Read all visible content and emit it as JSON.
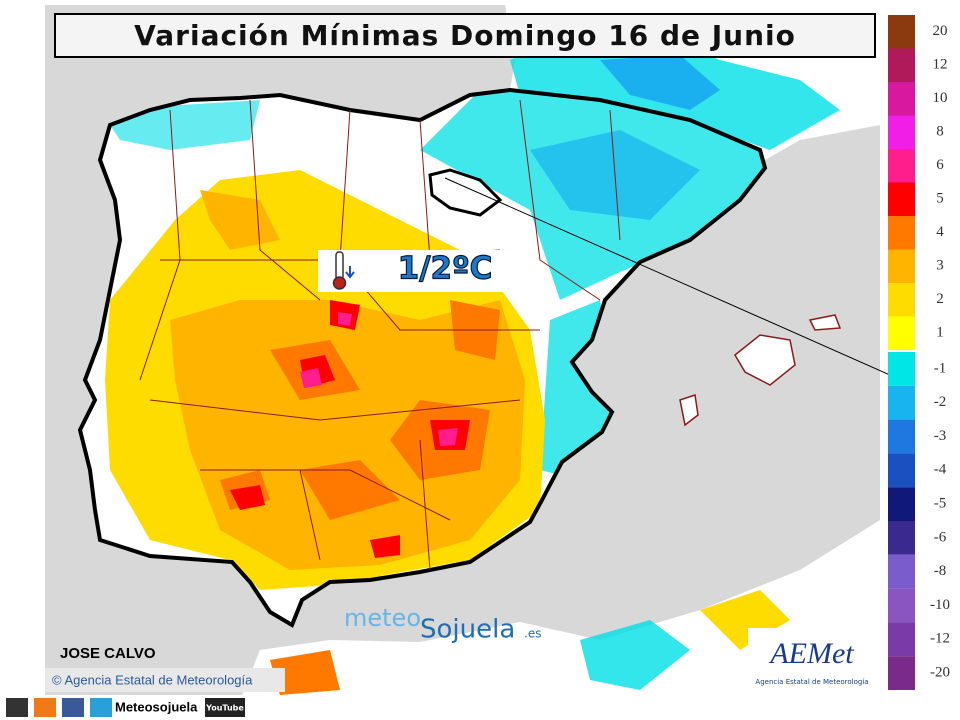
{
  "header": {
    "title": "Variación Mínimas Domingo 16 de Junio"
  },
  "map": {
    "annotation": "1/2ºC",
    "author": "JOSE CALVO",
    "credit": "© Agencia Estatal de Meteorología",
    "watermark": {
      "prefix": "meteo",
      "name": "Sojuela",
      "suffix": ".es"
    },
    "logo": {
      "name": "AEMet",
      "subtitle": "Agencia Estatal de Meteorología"
    }
  },
  "legend": {
    "positive": [
      {
        "label": 20,
        "color": "#8b3a10"
      },
      {
        "label": 12,
        "color": "#b01a5a"
      },
      {
        "label": 10,
        "color": "#d8189e"
      },
      {
        "label": 8,
        "color": "#f01ee6"
      },
      {
        "label": 6,
        "color": "#ff1e8c"
      },
      {
        "label": 5,
        "color": "#ff0000"
      },
      {
        "label": 4,
        "color": "#ff7800"
      },
      {
        "label": 3,
        "color": "#ffb400"
      },
      {
        "label": 2,
        "color": "#ffdc00"
      },
      {
        "label": 1,
        "color": "#ffff00"
      }
    ],
    "negative": [
      {
        "label": -1,
        "color": "#00e6e6"
      },
      {
        "label": -2,
        "color": "#18b4f0"
      },
      {
        "label": -3,
        "color": "#1e78e0"
      },
      {
        "label": -4,
        "color": "#1a50c0"
      },
      {
        "label": -5,
        "color": "#10187a"
      },
      {
        "label": -6,
        "color": "#3a2a90"
      },
      {
        "label": -8,
        "color": "#7a5ccc"
      },
      {
        "label": -10,
        "color": "#8a55c0"
      },
      {
        "label": -12,
        "color": "#7a3aa8"
      },
      {
        "label": -20,
        "color": "#7a2a8a"
      }
    ]
  },
  "footer": {
    "brand": "Meteosojuela",
    "youtube": "YouTube"
  }
}
